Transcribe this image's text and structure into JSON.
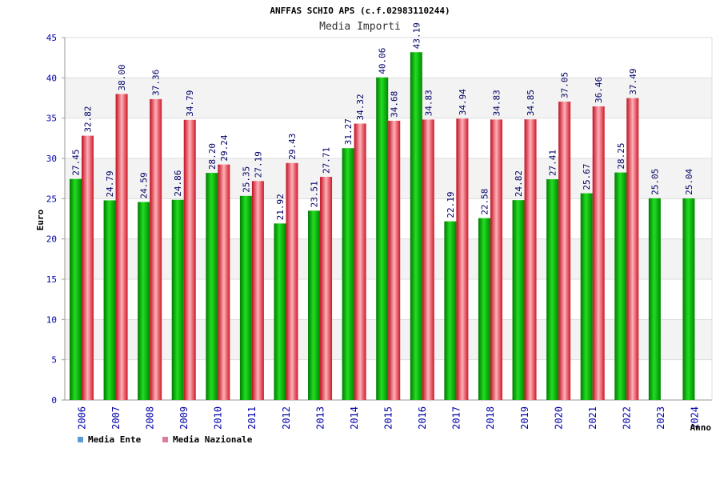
{
  "chart_data": {
    "type": "bar",
    "title": "ANFFAS SCHIO APS (c.f.02983110244)",
    "subtitle": "Media Importi",
    "xlabel": "Anno",
    "ylabel": "Euro",
    "ylim": [
      0,
      45
    ],
    "yticks": [
      0,
      5,
      10,
      15,
      20,
      25,
      30,
      35,
      40,
      45
    ],
    "grid": true,
    "legend_position": "bottom-left",
    "categories": [
      "2006",
      "2007",
      "2008",
      "2009",
      "2010",
      "2011",
      "2012",
      "2013",
      "2014",
      "2015",
      "2016",
      "2017",
      "2018",
      "2019",
      "2020",
      "2021",
      "2022",
      "2023",
      "2024"
    ],
    "series": [
      {
        "name": "Media Ente",
        "color": "#00bb00",
        "values": [
          27.45,
          24.79,
          24.59,
          24.86,
          28.2,
          25.35,
          21.92,
          23.51,
          31.27,
          40.06,
          43.19,
          22.19,
          22.58,
          24.82,
          27.41,
          25.67,
          28.25,
          25.05,
          25.04
        ],
        "labels": [
          "27.45",
          "24.79",
          "24.59",
          "24.86",
          "28.20",
          "25.35",
          "21.92",
          "23.51",
          "31.27",
          "40.06",
          "43.19",
          "22.19",
          "22.58",
          "24.82",
          "27.41",
          "25.67",
          "28.25",
          "25.05",
          "25.04"
        ]
      },
      {
        "name": "Media Nazionale",
        "color": "#e8333f",
        "values": [
          32.82,
          38.0,
          37.36,
          34.79,
          29.24,
          27.19,
          29.43,
          27.71,
          34.32,
          34.68,
          34.83,
          34.94,
          34.83,
          34.85,
          37.05,
          36.46,
          37.49,
          null,
          null
        ],
        "labels": [
          "32.82",
          "38.00",
          "37.36",
          "34.79",
          "29.24",
          "27.19",
          "29.43",
          "27.71",
          "34.32",
          "34.68",
          "34.83",
          "34.94",
          "34.83",
          "34.85",
          "37.05",
          "36.46",
          "37.49",
          "",
          ""
        ]
      }
    ]
  },
  "legend": {
    "items": [
      {
        "label": "Media Ente",
        "swatch_color": "#5b9bd5"
      },
      {
        "label": "Media Nazionale",
        "swatch_color": "#e07aa0"
      }
    ]
  }
}
